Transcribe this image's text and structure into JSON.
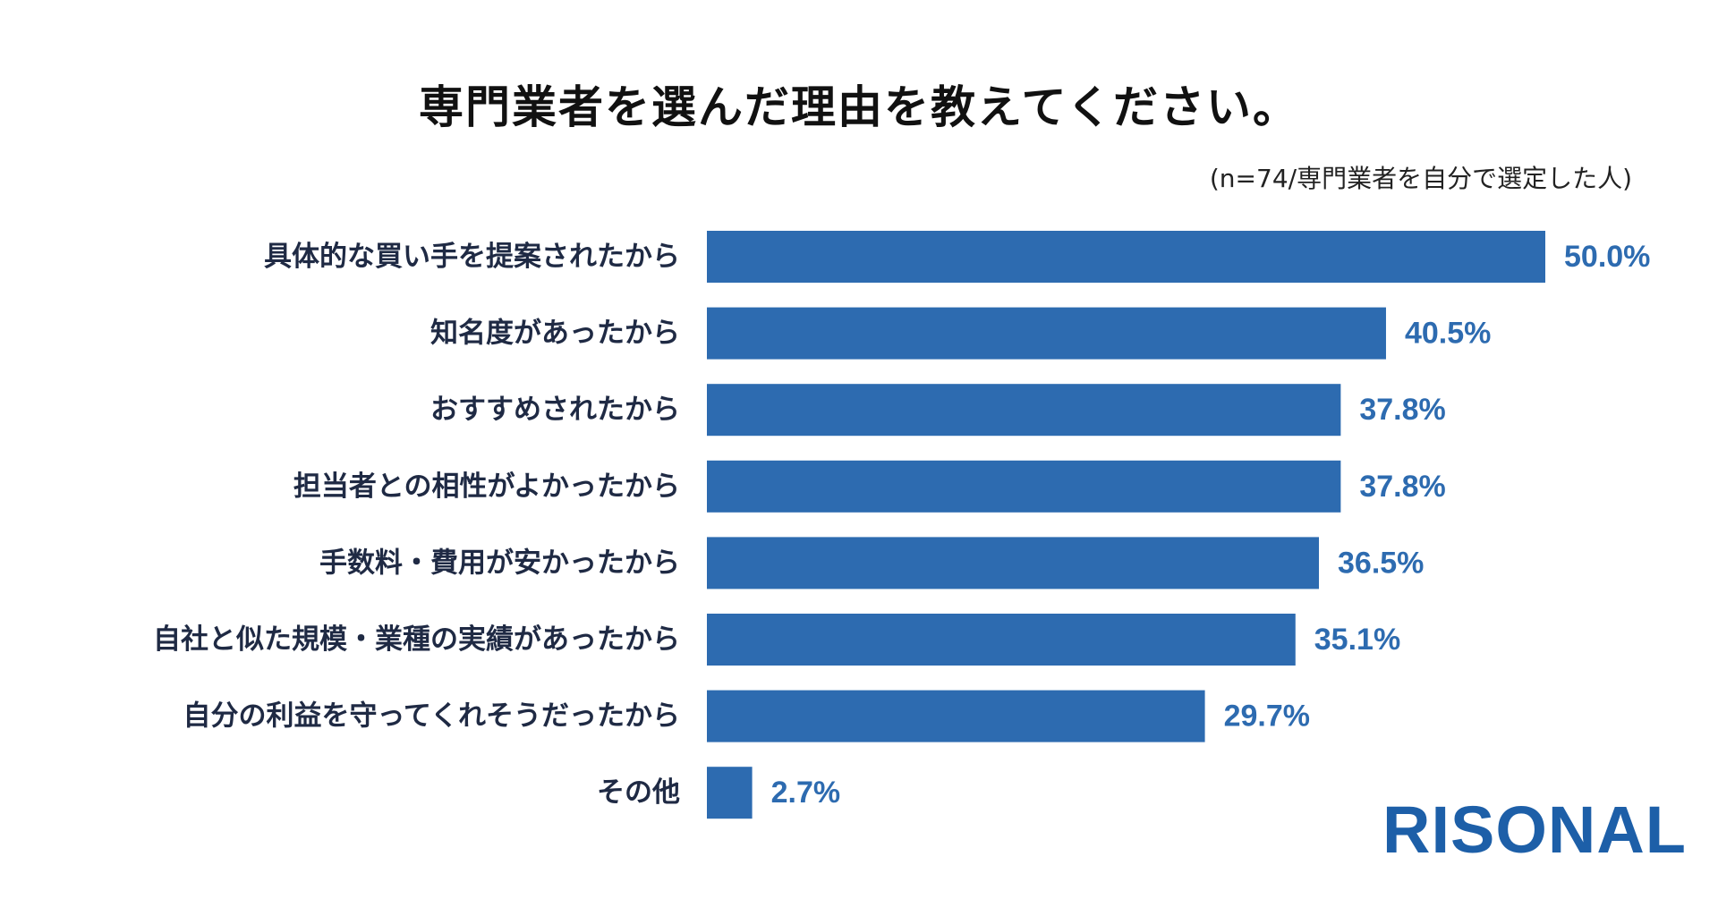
{
  "chart_data": {
    "type": "bar",
    "orientation": "horizontal",
    "title": "専門業者を選んだ理由を教えてください。",
    "note": "(n=74/専門業者を自分で選定した人)",
    "categories": [
      "具体的な買い手を提案されたから",
      "知名度があったから",
      "おすすめされたから",
      "担当者との相性がよかったから",
      "手数料・費用が安かったから",
      "自社と似た規模・業種の実績があったから",
      "自分の利益を守ってくれそうだったから",
      "その他"
    ],
    "values": [
      50.0,
      40.5,
      37.8,
      37.8,
      36.5,
      35.1,
      29.7,
      2.7
    ],
    "value_labels": [
      "50.0%",
      "40.5%",
      "37.8%",
      "37.8%",
      "36.5%",
      "35.1%",
      "29.7%",
      "2.7%"
    ],
    "unit": "%",
    "xlim": [
      0,
      50
    ],
    "xlabel": "",
    "ylabel": "",
    "grid": false,
    "legend": "none",
    "bar_color": "#2d6bb0"
  },
  "brand": {
    "name": "RISONAL",
    "color": "#1d5fa8"
  }
}
